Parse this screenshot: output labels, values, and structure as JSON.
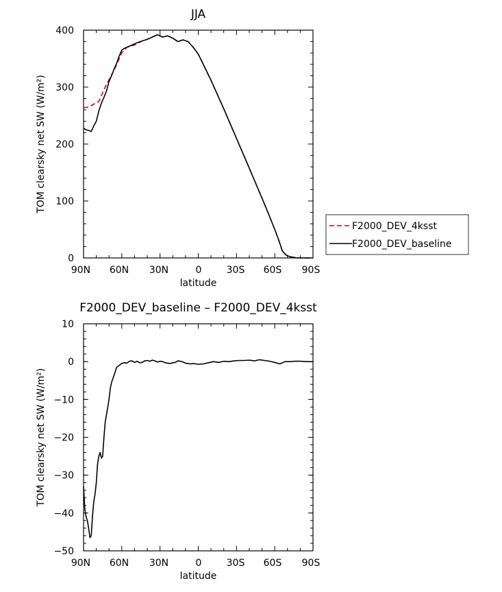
{
  "chart_data": [
    {
      "type": "line",
      "title": "JJA",
      "xlabel": "latitude",
      "ylabel": "TOM clearsky net SW (W/m²)",
      "xticks": [
        "90N",
        "60N",
        "30N",
        "0",
        "30S",
        "60S",
        "90S"
      ],
      "xlim": [
        90,
        -90
      ],
      "ylim": [
        0,
        400
      ],
      "yticks": [
        "0",
        "100",
        "200",
        "300",
        "400"
      ],
      "legend_position": "right",
      "series": [
        {
          "name": "F2000_DEV_4ksst",
          "color": "#cc0000",
          "dash": "dashed",
          "x": [
            90,
            86,
            78,
            72,
            66,
            60,
            56,
            50,
            44,
            40,
            36,
            32,
            28,
            24,
            20,
            16,
            12,
            8,
            4,
            0,
            -10,
            -20,
            -30,
            -40,
            -50,
            -55,
            -60,
            -63,
            -66,
            -69,
            -72,
            -75,
            -78,
            -84,
            -90
          ],
          "y": [
            264,
            265,
            275,
            305,
            330,
            360,
            370,
            374,
            381,
            384,
            388,
            392,
            388,
            390,
            386,
            380,
            383,
            380,
            370,
            358,
            312,
            262,
            210,
            158,
            105,
            78,
            50,
            32,
            12,
            5,
            2,
            1,
            0,
            0,
            0
          ]
        },
        {
          "name": "F2000_DEV_baseline",
          "color": "#000000",
          "dash": "solid",
          "x": [
            90,
            88,
            86,
            84,
            82,
            80,
            78,
            76,
            74,
            72,
            70,
            68,
            66,
            64,
            62,
            60,
            58,
            56,
            52,
            48,
            44,
            40,
            36,
            32,
            28,
            24,
            20,
            16,
            12,
            8,
            4,
            0,
            -10,
            -20,
            -30,
            -40,
            -50,
            -55,
            -60,
            -63,
            -66,
            -69,
            -72,
            -75,
            -78,
            -84,
            -90
          ],
          "y": [
            228,
            225,
            224,
            222,
            232,
            240,
            258,
            272,
            282,
            293,
            310,
            320,
            332,
            342,
            355,
            365,
            368,
            370,
            374,
            378,
            381,
            384,
            388,
            392,
            388,
            390,
            386,
            380,
            383,
            380,
            370,
            358,
            312,
            262,
            210,
            158,
            105,
            78,
            50,
            32,
            12,
            5,
            2,
            1,
            0,
            0,
            0
          ]
        }
      ]
    },
    {
      "type": "line",
      "title": "F2000_DEV_baseline – F2000_DEV_4ksst",
      "xlabel": "latitude",
      "ylabel": "TOM clearsky net SW (W/m²)",
      "xticks": [
        "90N",
        "60N",
        "30N",
        "0",
        "30S",
        "60S",
        "90S"
      ],
      "xlim": [
        90,
        -90
      ],
      "ylim": [
        -50,
        10
      ],
      "yticks": [
        "10",
        "0",
        "−10",
        "−20",
        "−30",
        "−40",
        "−50"
      ],
      "series": [
        {
          "color": "#000000",
          "dash": "solid",
          "x": [
            90,
            89,
            88,
            87,
            86,
            85,
            84,
            83,
            82,
            81,
            80,
            79,
            78,
            77,
            76,
            75,
            74,
            73,
            72,
            71,
            70,
            69,
            68,
            67,
            66,
            65,
            64,
            63,
            62,
            61,
            60,
            58,
            56,
            54,
            52,
            50,
            48,
            46,
            44,
            42,
            40,
            38,
            36,
            34,
            32,
            30,
            28,
            26,
            24,
            22,
            20,
            18,
            16,
            14,
            12,
            10,
            8,
            6,
            4,
            2,
            0,
            -4,
            -8,
            -12,
            -16,
            -20,
            -24,
            -28,
            -32,
            -36,
            -40,
            -44,
            -48,
            -52,
            -56,
            -60,
            -64,
            -68,
            -72,
            -76,
            -80,
            -85,
            -90
          ],
          "y": [
            -33,
            -39,
            -41,
            -42,
            -44,
            -46.5,
            -46,
            -41,
            -37,
            -35,
            -32,
            -27,
            -25,
            -24,
            -25.5,
            -25,
            -20,
            -16,
            -14,
            -12,
            -10,
            -7,
            -5.5,
            -4.5,
            -3.5,
            -2.5,
            -1.5,
            -1.2,
            -1,
            -0.7,
            -0.5,
            -0.3,
            -0.4,
            0.1,
            0.2,
            -0.2,
            0.1,
            -0.3,
            -0.2,
            0.2,
            0.3,
            0.1,
            0.4,
            0.2,
            -0.1,
            0.1,
            0,
            -0.3,
            -0.4,
            -0.5,
            -0.3,
            -0.2,
            0.2,
            0.1,
            -0.1,
            -0.4,
            -0.5,
            -0.6,
            -0.5,
            -0.6,
            -0.7,
            -0.6,
            -0.3,
            0,
            -0.2,
            0.1,
            0,
            0.2,
            0.3,
            0.3,
            0.4,
            0.2,
            0.5,
            0.3,
            0.1,
            -0.2,
            -0.6,
            0,
            0,
            0.1,
            0.1,
            0,
            0
          ]
        }
      ]
    }
  ]
}
